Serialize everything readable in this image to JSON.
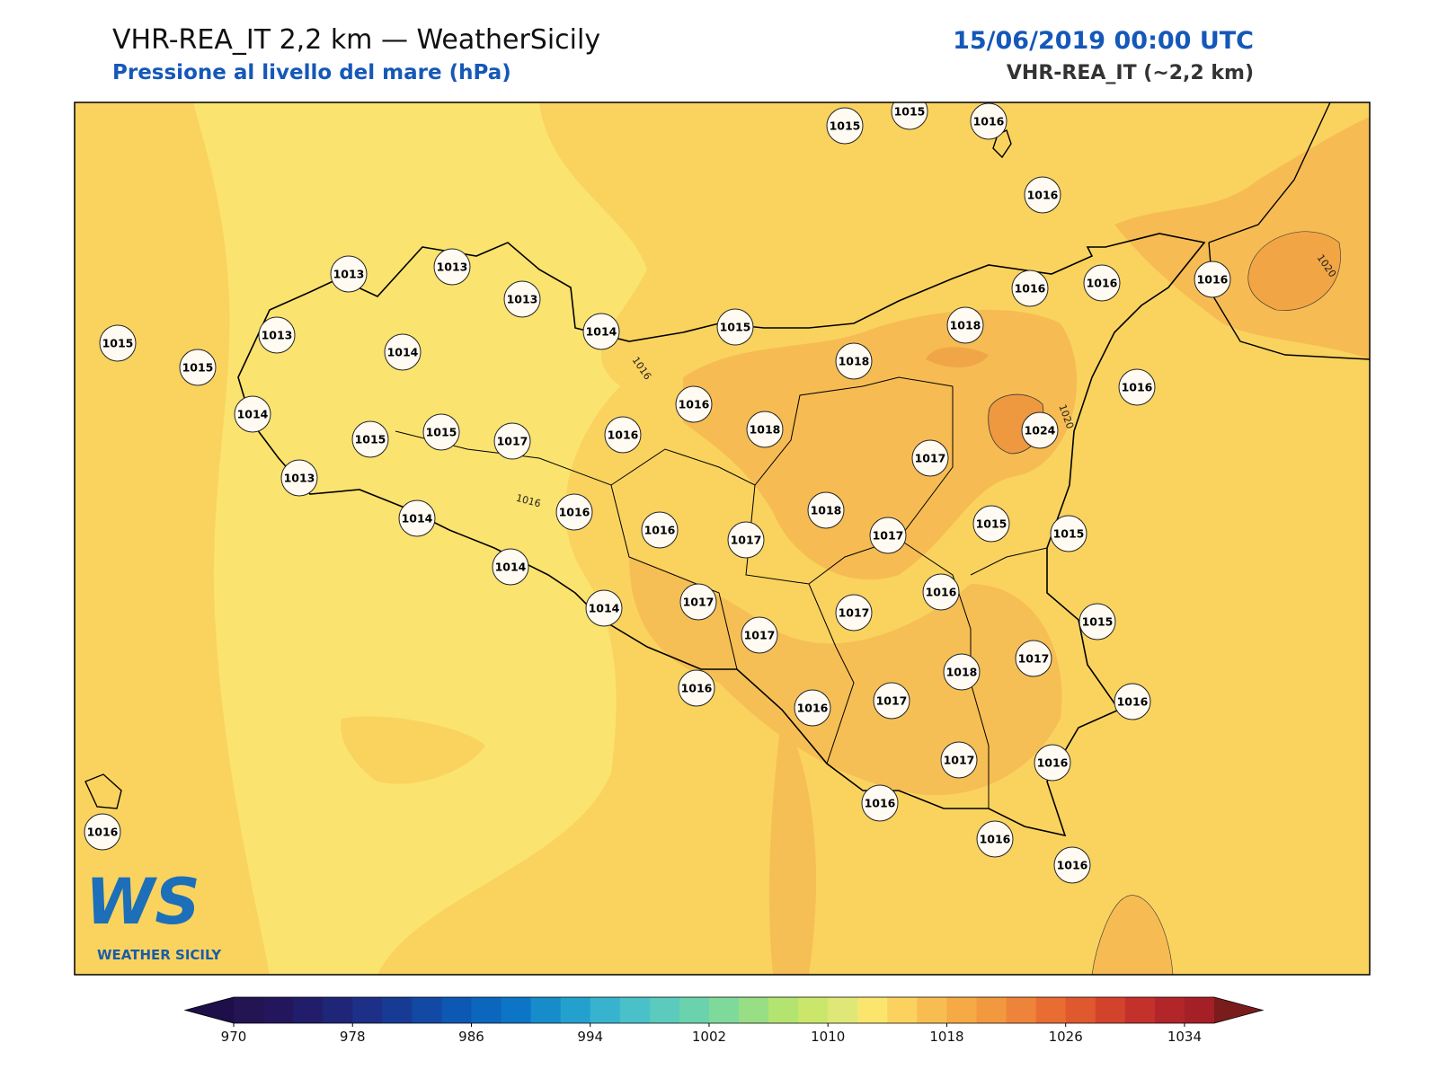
{
  "header": {
    "title": "VHR-REA_IT 2,2 km — WeatherSicily",
    "subtitle": "Pressione al livello del mare (hPa)",
    "datetime": "15/06/2019 00:00 UTC",
    "model": "VHR-REA_IT (~2,2 km)"
  },
  "map": {
    "stations": [
      1015,
      1015,
      1016,
      1016,
      1013,
      1013,
      1013,
      1014,
      1015,
      1015,
      1015,
      1013,
      1014,
      1014,
      1015,
      1015,
      1017,
      1016,
      1016,
      1018,
      1018,
      1018,
      1016,
      1016,
      1016,
      1016,
      1024,
      1017,
      1013,
      1014,
      1016,
      1016,
      1017,
      1018,
      1017,
      1015,
      1015,
      1014,
      1014,
      1017,
      1017,
      1017,
      1016,
      1015,
      1018,
      1017,
      1016,
      1016,
      1016,
      1017,
      1017,
      1016,
      1016,
      1016,
      1016,
      1016
    ],
    "contour_labels": [
      "1016",
      "1016",
      "1020",
      "1020"
    ]
  },
  "logo": {
    "mark": "WS",
    "name": "WEATHER SICILY"
  },
  "colorbar": {
    "lim": [
      970,
      1036
    ],
    "ticks": [
      970,
      978,
      986,
      994,
      1002,
      1010,
      1018,
      1026,
      1034
    ],
    "colors": [
      "#231452",
      "#24165c",
      "#211d6b",
      "#1f2577",
      "#1d2f86",
      "#173b94",
      "#1149a5",
      "#0d58b3",
      "#0b66bd",
      "#0d75c6",
      "#168ccb",
      "#24a0cf",
      "#37b3d0",
      "#4ac0c9",
      "#5acbbd",
      "#6ad3ad",
      "#7fd99b",
      "#98de85",
      "#b3e470",
      "#cbe76b",
      "#dfe877",
      "#fbe56d",
      "#fbd25e",
      "#f8bd50",
      "#f5aa45",
      "#f2983f",
      "#ee8439",
      "#e96d32",
      "#e0582e",
      "#d3432c",
      "#c4312b",
      "#b22528",
      "#a51f26"
    ],
    "extend_colors": [
      "#1e0f4a",
      "#7a1c1c"
    ]
  }
}
